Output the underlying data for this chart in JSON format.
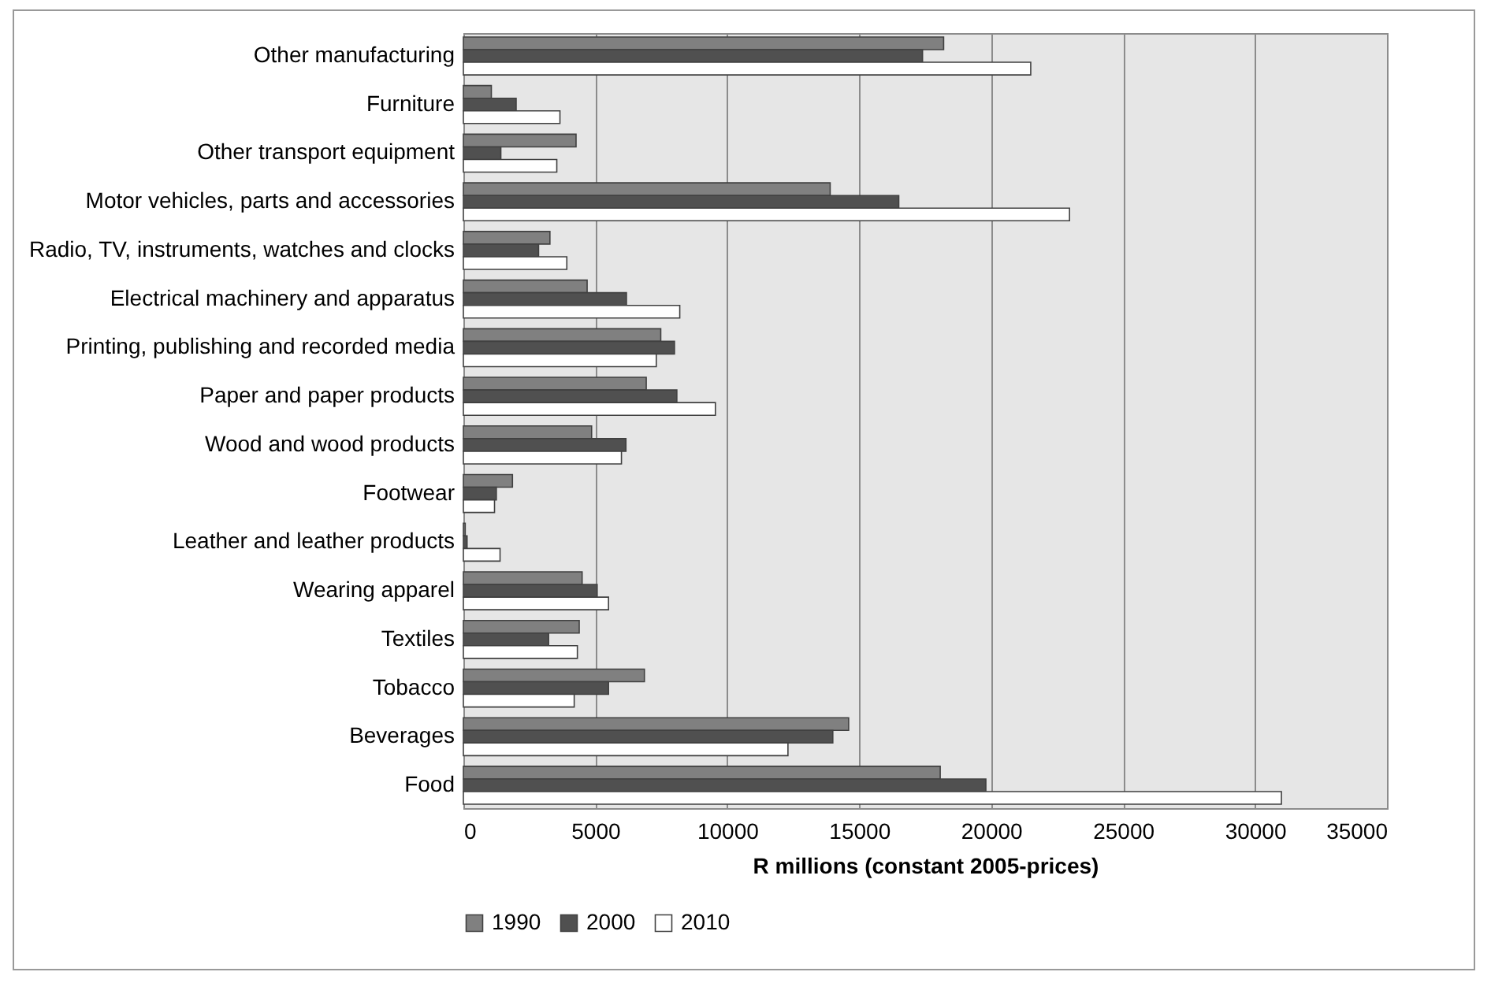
{
  "chart_data": {
    "type": "bar",
    "orientation": "horizontal",
    "xlabel": "R millions  (constant 2005-prices)",
    "categories": [
      "Other manufacturing",
      "Furniture",
      "Other transport equipment",
      "Motor vehicles, parts and accessories",
      "Radio, TV, instruments, watches and clocks",
      "Electrical machinery and apparatus",
      "Printing, publishing and recorded media",
      "Paper and paper products",
      "Wood and wood products",
      "Footwear",
      "Leather and leather products",
      "Wearing apparel",
      "Textiles",
      "Tobacco",
      "Beverages",
      "Food"
    ],
    "series": [
      {
        "name": "1990",
        "color": "#808080",
        "values": [
          18200,
          1060,
          4270,
          13900,
          3280,
          4690,
          7480,
          6930,
          4860,
          1860,
          70,
          4500,
          4390,
          6860,
          14600,
          18070
        ]
      },
      {
        "name": "2000",
        "color": "#505050",
        "values": [
          17400,
          2000,
          1420,
          16500,
          2850,
          6180,
          8000,
          8090,
          6160,
          1250,
          140,
          5070,
          3230,
          5500,
          14000,
          19800
        ]
      },
      {
        "name": "2010",
        "color": "#ffffff",
        "values": [
          21500,
          3660,
          3540,
          22970,
          3920,
          8200,
          7310,
          9550,
          5990,
          1180,
          1390,
          5500,
          4320,
          4200,
          12300,
          31000
        ]
      }
    ],
    "xlim": [
      0,
      35000
    ],
    "xticks": [
      0,
      5000,
      10000,
      15000,
      20000,
      25000,
      30000,
      35000
    ],
    "grid": "x",
    "legend": "bottom"
  }
}
